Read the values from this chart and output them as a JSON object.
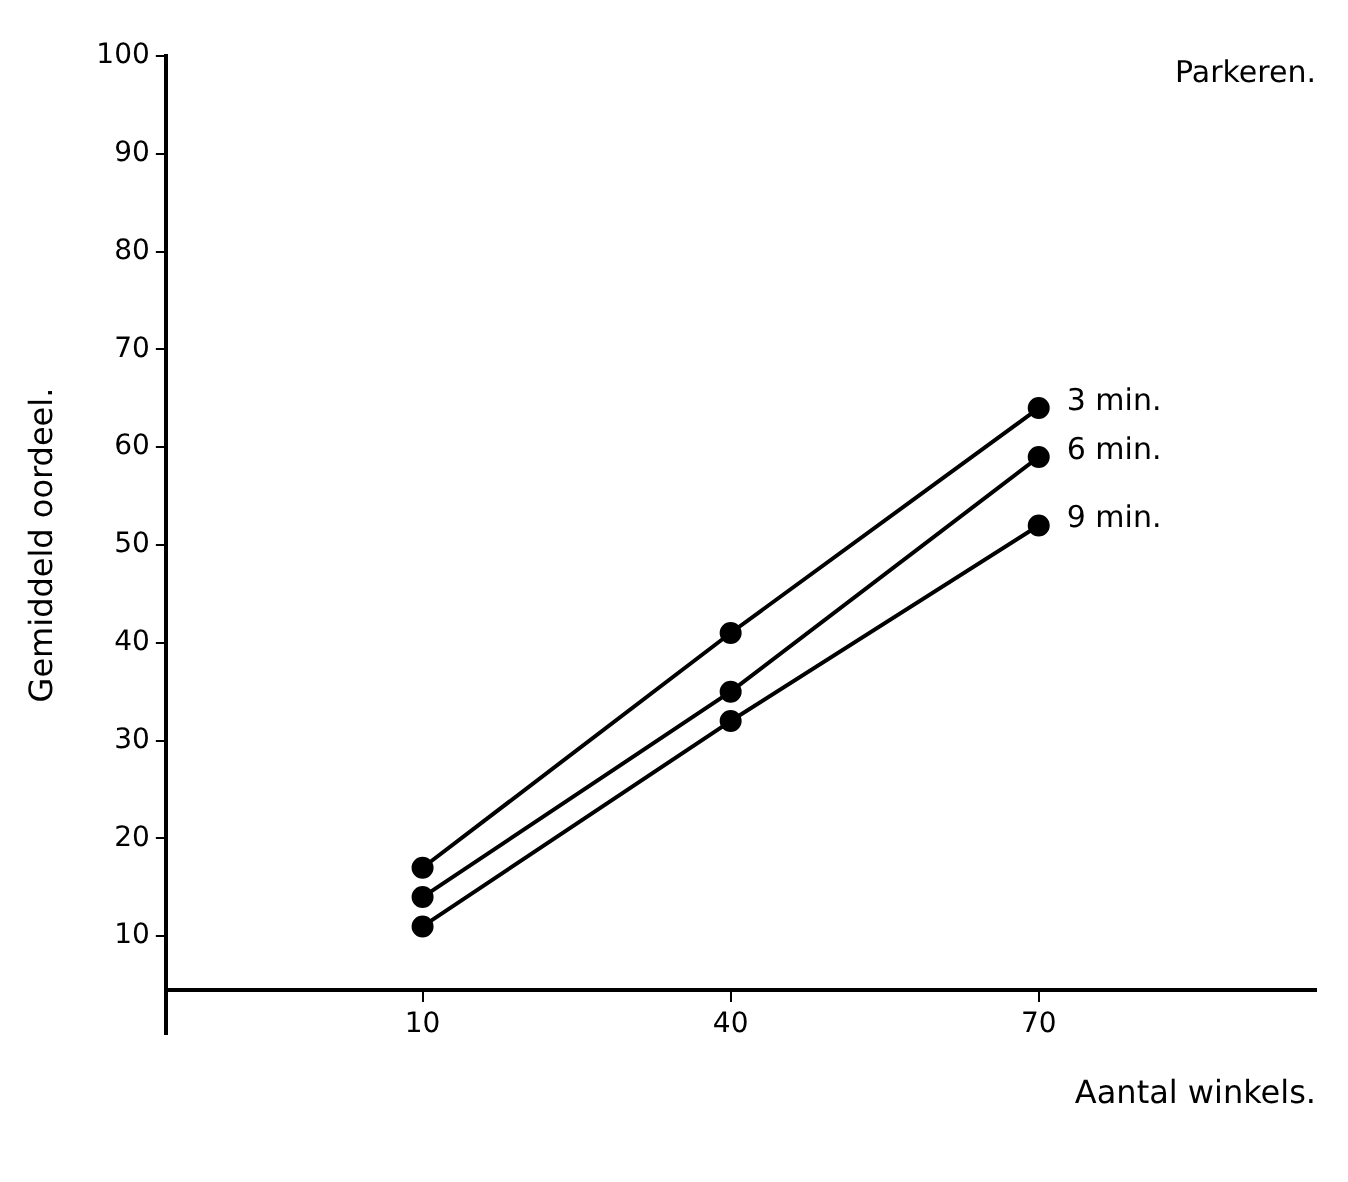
{
  "chart_data": {
    "type": "line",
    "title": "Parkeren.",
    "xlabel": "Aantal winkels.",
    "ylabel": "Gemiddeld oordeel.",
    "x": [
      10,
      40,
      70
    ],
    "series": [
      {
        "name": "3 min.",
        "color": "#000000",
        "values": [
          17,
          41,
          64
        ]
      },
      {
        "name": "6 min.",
        "color": "#000000",
        "values": [
          14,
          35,
          59
        ]
      },
      {
        "name": "9 min.",
        "color": "#000000",
        "values": [
          11,
          32,
          52
        ]
      }
    ],
    "xlim": [
      -15,
      97
    ],
    "xticks": [
      10,
      40,
      70
    ],
    "ylim": [
      0,
      100
    ],
    "yticks": [
      10,
      20,
      30,
      40,
      50,
      60,
      70,
      80,
      90,
      100
    ],
    "grid": false,
    "legend": false,
    "marker": "circle",
    "line_style": "solid"
  }
}
